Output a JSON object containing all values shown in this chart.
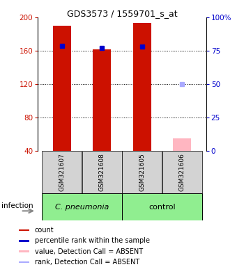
{
  "title": "GDS3573 / 1559701_s_at",
  "samples": [
    "GSM321607",
    "GSM321608",
    "GSM321605",
    "GSM321606"
  ],
  "count_values": [
    190,
    162,
    193,
    55
  ],
  "count_absent": [
    false,
    false,
    false,
    true
  ],
  "percentile_values": [
    166,
    163,
    165,
    120
  ],
  "percentile_absent": [
    false,
    false,
    false,
    true
  ],
  "ylim_left": [
    40,
    200
  ],
  "ylim_right": [
    0,
    100
  ],
  "yticks_left": [
    40,
    80,
    120,
    160,
    200
  ],
  "yticks_right": [
    0,
    25,
    50,
    75,
    100
  ],
  "count_color": "#cc1100",
  "count_absent_color": "#FFB6C1",
  "percentile_color": "#0000cc",
  "percentile_absent_color": "#AAAAFF",
  "group1_label": "C. pneumonia",
  "group2_label": "control",
  "group_color": "#90EE90",
  "legend_labels": [
    "count",
    "percentile rank within the sample",
    "value, Detection Call = ABSENT",
    "rank, Detection Call = ABSENT"
  ],
  "legend_colors": [
    "#cc1100",
    "#0000cc",
    "#FFB6C1",
    "#AAAAFF"
  ],
  "infection_label": "infection",
  "bar_width": 0.45,
  "title_fontsize": 9,
  "tick_fontsize": 7.5,
  "sample_fontsize": 6.5,
  "group_fontsize": 8,
  "legend_fontsize": 7,
  "label_fontsize": 7.5
}
